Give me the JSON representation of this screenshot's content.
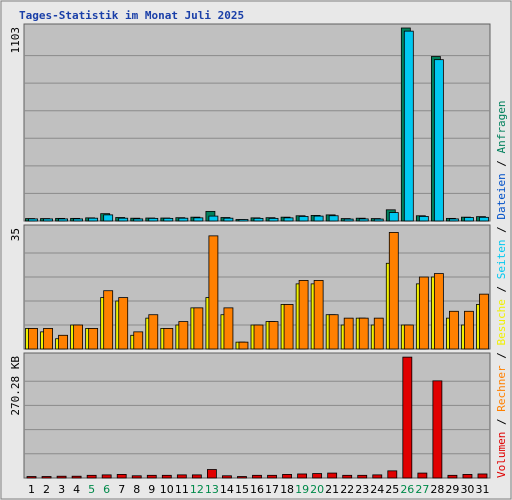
{
  "chart_data": {
    "type": "bar",
    "title": "Tages-Statistik im Monat Juli 2025",
    "categories": [
      "1",
      "2",
      "3",
      "4",
      "5",
      "6",
      "7",
      "8",
      "9",
      "10",
      "11",
      "12",
      "13",
      "14",
      "15",
      "16",
      "17",
      "18",
      "19",
      "20",
      "21",
      "22",
      "23",
      "24",
      "25",
      "26",
      "27",
      "28",
      "29",
      "30",
      "31"
    ],
    "weekend_days": [
      "5",
      "6",
      "12",
      "13",
      "19",
      "20",
      "26",
      "27"
    ],
    "grid": true,
    "panels": [
      {
        "name": "hits-files",
        "ymax": 1103,
        "ymax_label": "1103",
        "series": [
          {
            "name": "Anfragen",
            "color": "#00805c",
            "values": [
              14,
              14,
              15,
              15,
              18,
              42,
              20,
              16,
              17,
              17,
              19,
              22,
              55,
              20,
              8,
              18,
              19,
              22,
              30,
              32,
              35,
              14,
              16,
              14,
              64,
              1103,
              30,
              940,
              15,
              22,
              25
            ]
          },
          {
            "name": "Dateien",
            "color": "#00c8f0",
            "values": [
              12,
              12,
              12,
              12,
              16,
              35,
              16,
              12,
              15,
              15,
              16,
              18,
              28,
              16,
              6,
              15,
              15,
              18,
              26,
              28,
              30,
              11,
              12,
              11,
              48,
              1085,
              26,
              922,
              12,
              20,
              21
            ]
          }
        ]
      },
      {
        "name": "visits-sites",
        "ymax": 35,
        "ymax_label": "35",
        "series": [
          {
            "name": "Seiten",
            "color": "#00c8f0",
            "values": []
          },
          {
            "name": "Besuche",
            "color": "#f0f000",
            "values": [
              6,
              5,
              3,
              7,
              6,
              15,
              14,
              4,
              9,
              6,
              7,
              12,
              15,
              10,
              2,
              7,
              8,
              13,
              19,
              19,
              10,
              7,
              9,
              7,
              25,
              7,
              19,
              21,
              9,
              7,
              13
            ]
          },
          {
            "name": "Rechner",
            "color": "#ff8000",
            "values": [
              6,
              6,
              4,
              7,
              6,
              17,
              15,
              5,
              10,
              6,
              8,
              12,
              33,
              12,
              2,
              7,
              8,
              13,
              20,
              20,
              10,
              9,
              9,
              9,
              34,
              7,
              21,
              22,
              11,
              11,
              16
            ]
          }
        ]
      },
      {
        "name": "volume",
        "ymax": 270.28,
        "ymax_label": "270.28 KB",
        "series": [
          {
            "name": "Volumen",
            "color": "#e00000",
            "values": [
              3,
              3,
              4,
              4,
              6,
              7,
              8,
              5,
              6,
              6,
              7,
              7,
              19,
              5,
              3,
              6,
              6,
              8,
              9,
              10,
              11,
              6,
              6,
              7,
              16,
              270,
              11,
              217,
              6,
              8,
              9
            ]
          }
        ]
      }
    ],
    "legend_right": [
      {
        "label": "Volumen",
        "color": "#e00000"
      },
      {
        "label": "Rechner",
        "color": "#ff8000"
      },
      {
        "label": "Besuche",
        "color": "#f0f000"
      },
      {
        "label": "Seiten",
        "color": "#00c8f0"
      },
      {
        "label": "Dateien",
        "color": "#0050c8"
      },
      {
        "label": "Anfragen",
        "color": "#00805c"
      }
    ],
    "colors": {
      "background": "#e8e8e8",
      "plot_bg": "#c0c0c0",
      "grid": "#8a8a8a",
      "weekend": "#008a4a",
      "weekday": "#000000",
      "title": "#1a3fa8"
    }
  }
}
